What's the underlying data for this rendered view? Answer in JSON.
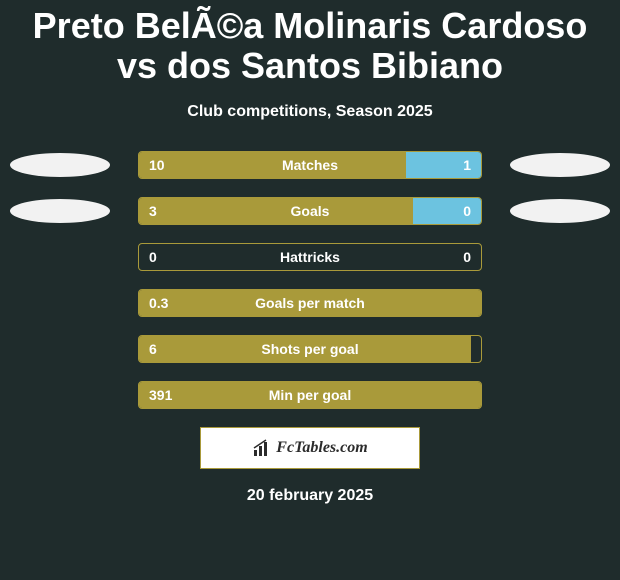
{
  "background_color": "#1f2c2c",
  "title": "Preto BelÃ©a Molinaris Cardoso vs dos Santos Bibiano",
  "title_color": "#ffffff",
  "title_fontsize": 36,
  "subtitle": "Club competitions, Season 2025",
  "subtitle_color": "#ffffff",
  "subtitle_fontsize": 16,
  "bar_border_color": "#a99a3a",
  "bar_fill_left_color": "#a99a3a",
  "bar_fill_right_color": "#6cc3e0",
  "bar_value_color": "#ffffff",
  "bar_label_color": "#ffffff",
  "bar_value_fontsize": 14,
  "bar_label_fontsize": 14,
  "oval_color": "#f2f2f2",
  "rows": [
    {
      "label": "Matches",
      "left_val": "10",
      "right_val": "1",
      "left_pct": 78,
      "right_pct": 22,
      "show_ovals": true
    },
    {
      "label": "Goals",
      "left_val": "3",
      "right_val": "0",
      "left_pct": 80,
      "right_pct": 20,
      "show_ovals": true
    },
    {
      "label": "Hattricks",
      "left_val": "0",
      "right_val": "0",
      "left_pct": 0,
      "right_pct": 0,
      "show_ovals": false
    },
    {
      "label": "Goals per match",
      "left_val": "0.3",
      "right_val": "",
      "left_pct": 100,
      "right_pct": 0,
      "show_ovals": false
    },
    {
      "label": "Shots per goal",
      "left_val": "6",
      "right_val": "",
      "left_pct": 97,
      "right_pct": 0,
      "show_ovals": false
    },
    {
      "label": "Min per goal",
      "left_val": "391",
      "right_val": "",
      "left_pct": 100,
      "right_pct": 0,
      "show_ovals": false
    }
  ],
  "footer_brand": "FcTables.com",
  "footer_border_color": "#a99a3a",
  "footer_text_color": "#2b2b2b",
  "footer_bg_color": "#ffffff",
  "footer_fontsize": 16,
  "date": "20 february 2025",
  "date_color": "#ffffff",
  "date_fontsize": 16
}
